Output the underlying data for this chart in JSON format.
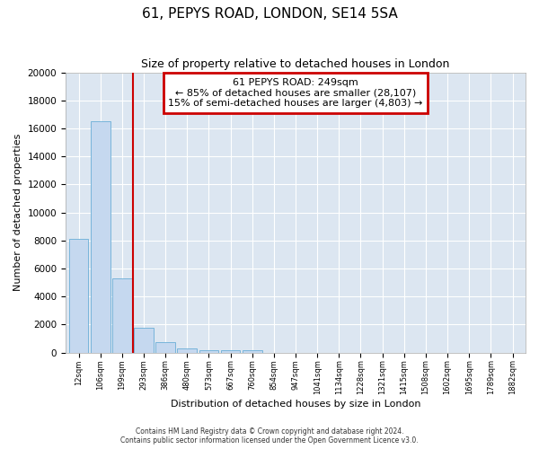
{
  "title1": "61, PEPYS ROAD, LONDON, SE14 5SA",
  "title2": "Size of property relative to detached houses in London",
  "xlabel": "Distribution of detached houses by size in London",
  "ylabel": "Number of detached properties",
  "bar_values": [
    8100,
    16500,
    5300,
    1800,
    750,
    300,
    200,
    200,
    150,
    0,
    0,
    0,
    0,
    0,
    0,
    0,
    0,
    0,
    0,
    0,
    0
  ],
  "bar_labels": [
    "12sqm",
    "106sqm",
    "199sqm",
    "293sqm",
    "386sqm",
    "480sqm",
    "573sqm",
    "667sqm",
    "760sqm",
    "854sqm",
    "947sqm",
    "1041sqm",
    "1134sqm",
    "1228sqm",
    "1321sqm",
    "1415sqm",
    "1508sqm",
    "1602sqm",
    "1695sqm",
    "1789sqm",
    "1882sqm"
  ],
  "bar_color": "#c5d8ef",
  "bar_edgecolor": "#6aaed6",
  "vline_x": 2.5,
  "vline_color": "#cc0000",
  "annotation_title": "61 PEPYS ROAD: 249sqm",
  "annotation_line1": "← 85% of detached houses are smaller (28,107)",
  "annotation_line2": "15% of semi-detached houses are larger (4,803) →",
  "annotation_box_color": "#cc0000",
  "ylim": [
    0,
    20000
  ],
  "yticks": [
    0,
    2000,
    4000,
    6000,
    8000,
    10000,
    12000,
    14000,
    16000,
    18000,
    20000
  ],
  "footer1": "Contains HM Land Registry data © Crown copyright and database right 2024.",
  "footer2": "Contains public sector information licensed under the Open Government Licence v3.0.",
  "plot_background": "#dce6f1"
}
